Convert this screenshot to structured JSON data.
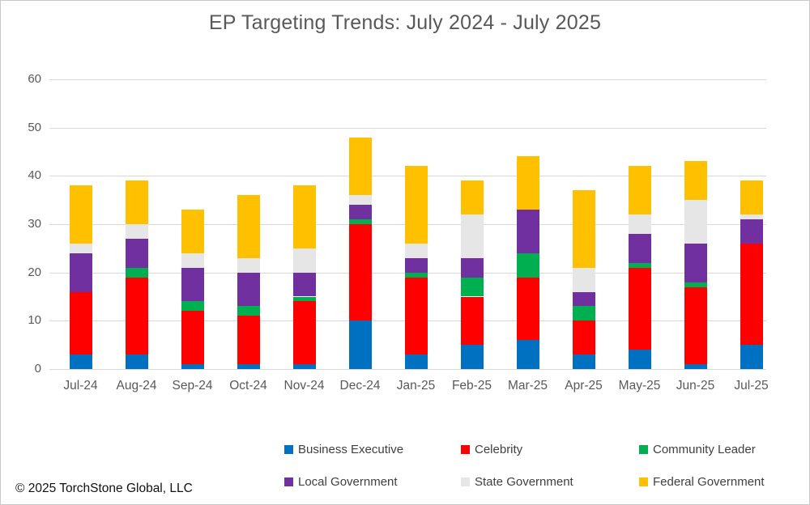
{
  "chart_data": {
    "type": "bar",
    "stacked": true,
    "title": "EP Targeting Trends: July 2024 - July 2025",
    "xlabel": "",
    "ylabel": "",
    "ylim": [
      0,
      60
    ],
    "yticks": [
      0,
      10,
      20,
      30,
      40,
      50,
      60
    ],
    "grid": true,
    "legend_position": "bottom",
    "categories": [
      "Jul-24",
      "Aug-24",
      "Sep-24",
      "Oct-24",
      "Nov-24",
      "Dec-24",
      "Jan-25",
      "Feb-25",
      "Mar-25",
      "Apr-25",
      "May-25",
      "Jun-25",
      "Jul-25"
    ],
    "series": [
      {
        "name": "Business Executive",
        "color": "#0070C0",
        "values": [
          3,
          3,
          1,
          1,
          1,
          10,
          3,
          5,
          6,
          3,
          4,
          1,
          5
        ]
      },
      {
        "name": "Celebrity",
        "color": "#FF0000",
        "values": [
          13,
          16,
          11,
          10,
          13,
          20,
          16,
          10,
          13,
          7,
          17,
          16,
          21
        ]
      },
      {
        "name": "Community Leader",
        "color": "#00B050",
        "values": [
          0,
          2,
          2,
          2,
          1,
          1,
          1,
          4,
          5,
          3,
          1,
          1,
          0
        ]
      },
      {
        "name": "Local Government",
        "color": "#7030A0",
        "values": [
          8,
          6,
          7,
          7,
          5,
          3,
          3,
          4,
          9,
          3,
          6,
          8,
          5
        ]
      },
      {
        "name": "State Government",
        "color": "#E6E6E6",
        "values": [
          2,
          3,
          3,
          3,
          5,
          2,
          3,
          9,
          0,
          5,
          4,
          9,
          1
        ]
      },
      {
        "name": "Federal Government",
        "color": "#FFC000",
        "values": [
          12,
          9,
          9,
          13,
          13,
          12,
          16,
          7,
          11,
          16,
          10,
          8,
          7
        ]
      }
    ],
    "bar_totals": [
      38,
      39,
      33,
      36,
      38,
      48,
      42,
      39,
      44,
      37,
      42,
      43,
      39
    ]
  },
  "footer": {
    "copyright": "© 2025 TorchStone Global, LLC"
  }
}
